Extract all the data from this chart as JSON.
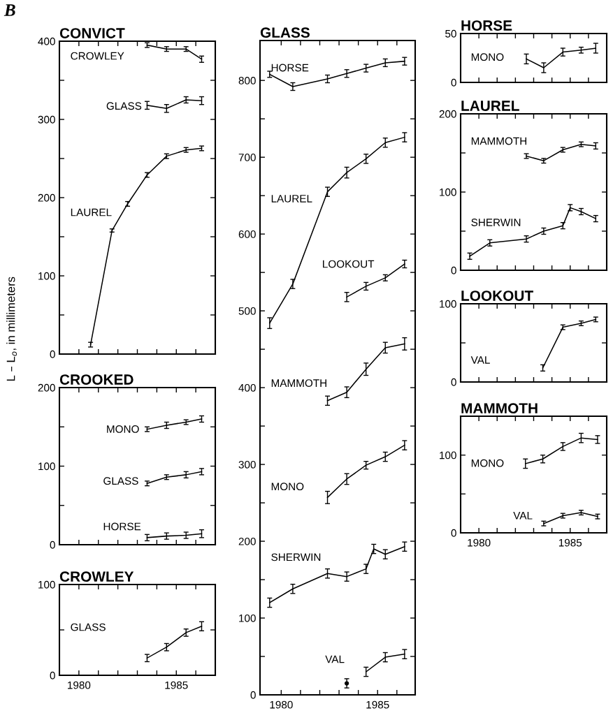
{
  "chart_data": [
    {
      "type": "line",
      "title": "CONVICT",
      "ylabel": "L – L$_{o}$, in millimeters",
      "annotations": [
        "B"
      ],
      "xlim": [
        1979,
        1987
      ],
      "xticks": [
        1980,
        {
          "value": 1981,
          "label": null
        },
        {
          "value": 1982,
          "label": null
        },
        {
          "value": 1983,
          "label": null
        },
        {
          "value": 1984,
          "label": null
        },
        1985,
        {
          "value": 1986,
          "label": null
        }
      ],
      "ylim": [
        0,
        400
      ],
      "yticks": [
        0,
        {
          "value": 50,
          "label": null
        },
        100,
        {
          "value": 150,
          "label": null
        },
        200,
        {
          "value": 250,
          "label": null
        },
        300,
        {
          "value": 350,
          "label": null
        },
        400
      ],
      "tick_labels": "y",
      "series": [
        {
          "name": "CROWLEY",
          "color": "#000000",
          "x": [
            1983.5,
            1984.5,
            1985.5,
            1986.3
          ],
          "values": [
            395,
            390,
            390,
            377
          ],
          "errors": [
            3,
            3,
            3,
            4
          ]
        },
        {
          "name": "GLASS",
          "color": "#000000",
          "x": [
            1983.5,
            1984.5,
            1985.5,
            1986.3
          ],
          "values": [
            318,
            314,
            325,
            324
          ],
          "errors": [
            5,
            5,
            4,
            5
          ]
        },
        {
          "name": "LAUREL",
          "color": "#000000",
          "x": [
            1980.6,
            1981.7,
            1982.5,
            1983.5,
            1984.5,
            1985.5,
            1986.3
          ],
          "values": [
            12,
            158,
            192,
            229,
            253,
            261,
            263
          ],
          "errors": [
            3,
            2,
            3,
            3,
            3,
            3,
            3
          ]
        }
      ]
    },
    {
      "type": "line",
      "title": "CROOKED",
      "xlim": [
        1979,
        1987
      ],
      "xticks": [
        1980,
        {
          "value": 1981,
          "label": null
        },
        {
          "value": 1982,
          "label": null
        },
        {
          "value": 1983,
          "label": null
        },
        {
          "value": 1984,
          "label": null
        },
        1985,
        {
          "value": 1986,
          "label": null
        }
      ],
      "ylim": [
        0,
        200
      ],
      "yticks": [
        0,
        {
          "value": 50,
          "label": null
        },
        100,
        {
          "value": 150,
          "label": null
        },
        200
      ],
      "tick_labels": "y",
      "series": [
        {
          "name": "MONO",
          "color": "#000000",
          "x": [
            1983.5,
            1984.5,
            1985.5,
            1986.3
          ],
          "values": [
            147,
            152,
            156,
            160
          ],
          "errors": [
            3,
            4,
            3,
            4
          ]
        },
        {
          "name": "GLASS",
          "color": "#000000",
          "x": [
            1983.5,
            1984.5,
            1985.5,
            1986.3
          ],
          "values": [
            78,
            86,
            89,
            93
          ],
          "errors": [
            3,
            3,
            4,
            4
          ]
        },
        {
          "name": "HORSE",
          "color": "#000000",
          "x": [
            1983.5,
            1984.5,
            1985.5,
            1986.3
          ],
          "values": [
            9,
            11,
            12,
            14
          ],
          "errors": [
            4,
            4,
            4,
            5
          ]
        }
      ]
    },
    {
      "type": "line",
      "title": "CROWLEY",
      "xlim": [
        1979,
        1987
      ],
      "xticks": [
        1980,
        {
          "value": 1981,
          "label": null
        },
        {
          "value": 1982,
          "label": null
        },
        {
          "value": 1983,
          "label": null
        },
        {
          "value": 1984,
          "label": null
        },
        1985,
        {
          "value": 1986,
          "label": null
        }
      ],
      "ylim": [
        0,
        100
      ],
      "yticks": [
        0,
        {
          "value": 50,
          "label": null
        },
        100
      ],
      "series": [
        {
          "name": "GLASS",
          "color": "#000000",
          "x": [
            1983.5,
            1984.5,
            1985.5,
            1986.3
          ],
          "values": [
            19,
            31,
            47,
            54
          ],
          "errors": [
            4,
            4,
            4,
            5
          ]
        }
      ]
    },
    {
      "type": "line",
      "title": "GLASS",
      "xlim": [
        1978.9,
        1986.95
      ],
      "xticks": [
        1980,
        {
          "value": 1981,
          "label": null
        },
        {
          "value": 1982,
          "label": null
        },
        {
          "value": 1983,
          "label": null
        },
        {
          "value": 1984,
          "label": null
        },
        1985,
        {
          "value": 1986,
          "label": null
        }
      ],
      "ylim": [
        0,
        852
      ],
      "yticks": [
        0,
        {
          "value": 50,
          "label": null
        },
        100,
        {
          "value": 150,
          "label": null
        },
        200,
        {
          "value": 250,
          "label": null
        },
        300,
        {
          "value": 350,
          "label": null
        },
        400,
        {
          "value": 450,
          "label": null
        },
        500,
        {
          "value": 550,
          "label": null
        },
        600,
        {
          "value": 650,
          "label": null
        },
        700,
        {
          "value": 750,
          "label": null
        },
        800
      ],
      "series": [
        {
          "name": "HORSE",
          "color": "#000000",
          "x": [
            1979.4,
            1980.6,
            1982.4,
            1983.4,
            1984.4,
            1985.4,
            1986.4
          ],
          "values": [
            808,
            792,
            802,
            809,
            816,
            823,
            825
          ],
          "errors": [
            4,
            5,
            5,
            5,
            5,
            5,
            5
          ]
        },
        {
          "name": "LAUREL",
          "color": "#000000",
          "x": [
            1979.4,
            1980.6,
            1982.4,
            1983.4,
            1984.4,
            1985.4,
            1986.4
          ],
          "values": [
            484,
            535,
            655,
            680,
            698,
            719,
            726
          ],
          "errors": [
            7,
            6,
            6,
            7,
            6,
            6,
            6
          ]
        },
        {
          "name": "LOOKOUT",
          "color": "#000000",
          "x": [
            1983.4,
            1984.4,
            1985.4,
            1986.4
          ],
          "values": [
            518,
            532,
            543,
            561
          ],
          "errors": [
            6,
            5,
            4,
            5
          ]
        },
        {
          "name": "MAMMOTH",
          "color": "#000000",
          "x": [
            1982.4,
            1983.4,
            1984.4,
            1985.4,
            1986.4
          ],
          "values": [
            383,
            394,
            424,
            452,
            457
          ],
          "errors": [
            6,
            7,
            8,
            7,
            8
          ]
        },
        {
          "name": "MONO",
          "color": "#000000",
          "x": [
            1982.4,
            1983.4,
            1984.4,
            1985.4,
            1986.4
          ],
          "values": [
            257,
            281,
            299,
            310,
            325
          ],
          "errors": [
            8,
            7,
            5,
            6,
            6
          ]
        },
        {
          "name": "SHERWIN",
          "color": "#000000",
          "x": [
            1979.4,
            1980.6,
            1982.4,
            1983.4,
            1984.4,
            1984.8,
            1985.4,
            1986.4
          ],
          "values": [
            120,
            138,
            158,
            154,
            164,
            190,
            183,
            193
          ],
          "errors": [
            6,
            6,
            6,
            6,
            6,
            6,
            6,
            6
          ]
        },
        {
          "name": "VAL",
          "color": "#000000",
          "x": [
            1984.4,
            1985.4,
            1986.4
          ],
          "values": [
            30,
            49,
            53
          ],
          "errors": [
            6,
            6,
            6
          ]
        },
        {
          "type": "scatter",
          "marker": "circle",
          "color": "#000000",
          "x": [
            1983.4
          ],
          "values": [
            15
          ],
          "errors": [
            6
          ]
        }
      ]
    },
    {
      "type": "line",
      "title": "HORSE",
      "xlim": [
        1979,
        1987
      ],
      "xticks": [
        1980,
        {
          "value": 1981,
          "label": null
        },
        {
          "value": 1982,
          "label": null
        },
        {
          "value": 1983,
          "label": null
        },
        {
          "value": 1984,
          "label": null
        },
        1985,
        {
          "value": 1986,
          "label": null
        }
      ],
      "ylim": [
        0,
        50
      ],
      "yticks": [
        0,
        50
      ],
      "tick_labels": "y",
      "series": [
        {
          "name": "MONO",
          "color": "#000000",
          "x": [
            1982.6,
            1983.55,
            1984.6,
            1985.6,
            1986.4
          ],
          "values": [
            24,
            15,
            31,
            33,
            35
          ],
          "errors": [
            5,
            5,
            4,
            3,
            5
          ]
        }
      ]
    },
    {
      "type": "line",
      "title": "LAUREL",
      "xlim": [
        1979,
        1987
      ],
      "xticks": [
        1980,
        {
          "value": 1981,
          "label": null
        },
        {
          "value": 1982,
          "label": null
        },
        {
          "value": 1983,
          "label": null
        },
        {
          "value": 1984,
          "label": null
        },
        1985,
        {
          "value": 1986,
          "label": null
        }
      ],
      "ylim": [
        0,
        200
      ],
      "yticks": [
        0,
        {
          "value": 50,
          "label": null
        },
        100,
        {
          "value": 150,
          "label": null
        },
        200
      ],
      "tick_labels": "y",
      "series": [
        {
          "name": "MAMMOTH",
          "color": "#000000",
          "x": [
            1982.6,
            1983.55,
            1984.6,
            1985.6,
            1986.4
          ],
          "values": [
            146,
            140,
            154,
            161,
            159
          ],
          "errors": [
            3,
            3,
            3,
            3,
            4
          ]
        },
        {
          "name": "SHERWIN",
          "color": "#000000",
          "x": [
            1979.5,
            1980.6,
            1982.6,
            1983.55,
            1984.6,
            1985.0,
            1985.6,
            1986.4
          ],
          "values": [
            18,
            35,
            40,
            50,
            57,
            80,
            75,
            66
          ],
          "errors": [
            4,
            4,
            4,
            4,
            4,
            4,
            4,
            4
          ]
        }
      ]
    },
    {
      "type": "line",
      "title": "LOOKOUT",
      "xlim": [
        1979,
        1987
      ],
      "xticks": [
        1980,
        {
          "value": 1981,
          "label": null
        },
        {
          "value": 1982,
          "label": null
        },
        {
          "value": 1983,
          "label": null
        },
        {
          "value": 1984,
          "label": null
        },
        1985,
        {
          "value": 1986,
          "label": null
        }
      ],
      "ylim": [
        0,
        100
      ],
      "yticks": [
        0,
        {
          "value": 50,
          "label": null
        },
        100
      ],
      "tick_labels": "y",
      "series": [
        {
          "name": "VAL",
          "color": "#000000",
          "x": [
            1983.5,
            1984.6,
            1985.6,
            1986.4
          ],
          "values": [
            18,
            70,
            75,
            80
          ],
          "errors": [
            4,
            3,
            3,
            3
          ]
        }
      ]
    },
    {
      "type": "line",
      "title": "MAMMOTH",
      "xlim": [
        1979,
        1987
      ],
      "xticks": [
        1980,
        {
          "value": 1981,
          "label": null
        },
        {
          "value": 1982,
          "label": null
        },
        {
          "value": 1983,
          "label": null
        },
        {
          "value": 1984,
          "label": null
        },
        1985,
        {
          "value": 1986,
          "label": null
        }
      ],
      "ylim": [
        0,
        150
      ],
      "yticks": [
        0,
        {
          "value": 50,
          "label": null
        },
        100
      ],
      "series": [
        {
          "name": "MONO",
          "color": "#000000",
          "x": [
            1982.55,
            1983.5,
            1984.6,
            1985.6,
            1986.5
          ],
          "values": [
            89,
            95,
            111,
            122,
            120
          ],
          "errors": [
            6,
            5,
            5,
            6,
            5
          ]
        },
        {
          "name": "VAL",
          "color": "#000000",
          "x": [
            1983.55,
            1984.6,
            1985.6,
            1986.5
          ],
          "values": [
            12,
            22,
            26,
            21
          ],
          "errors": [
            3,
            3,
            3,
            3
          ]
        }
      ]
    }
  ]
}
